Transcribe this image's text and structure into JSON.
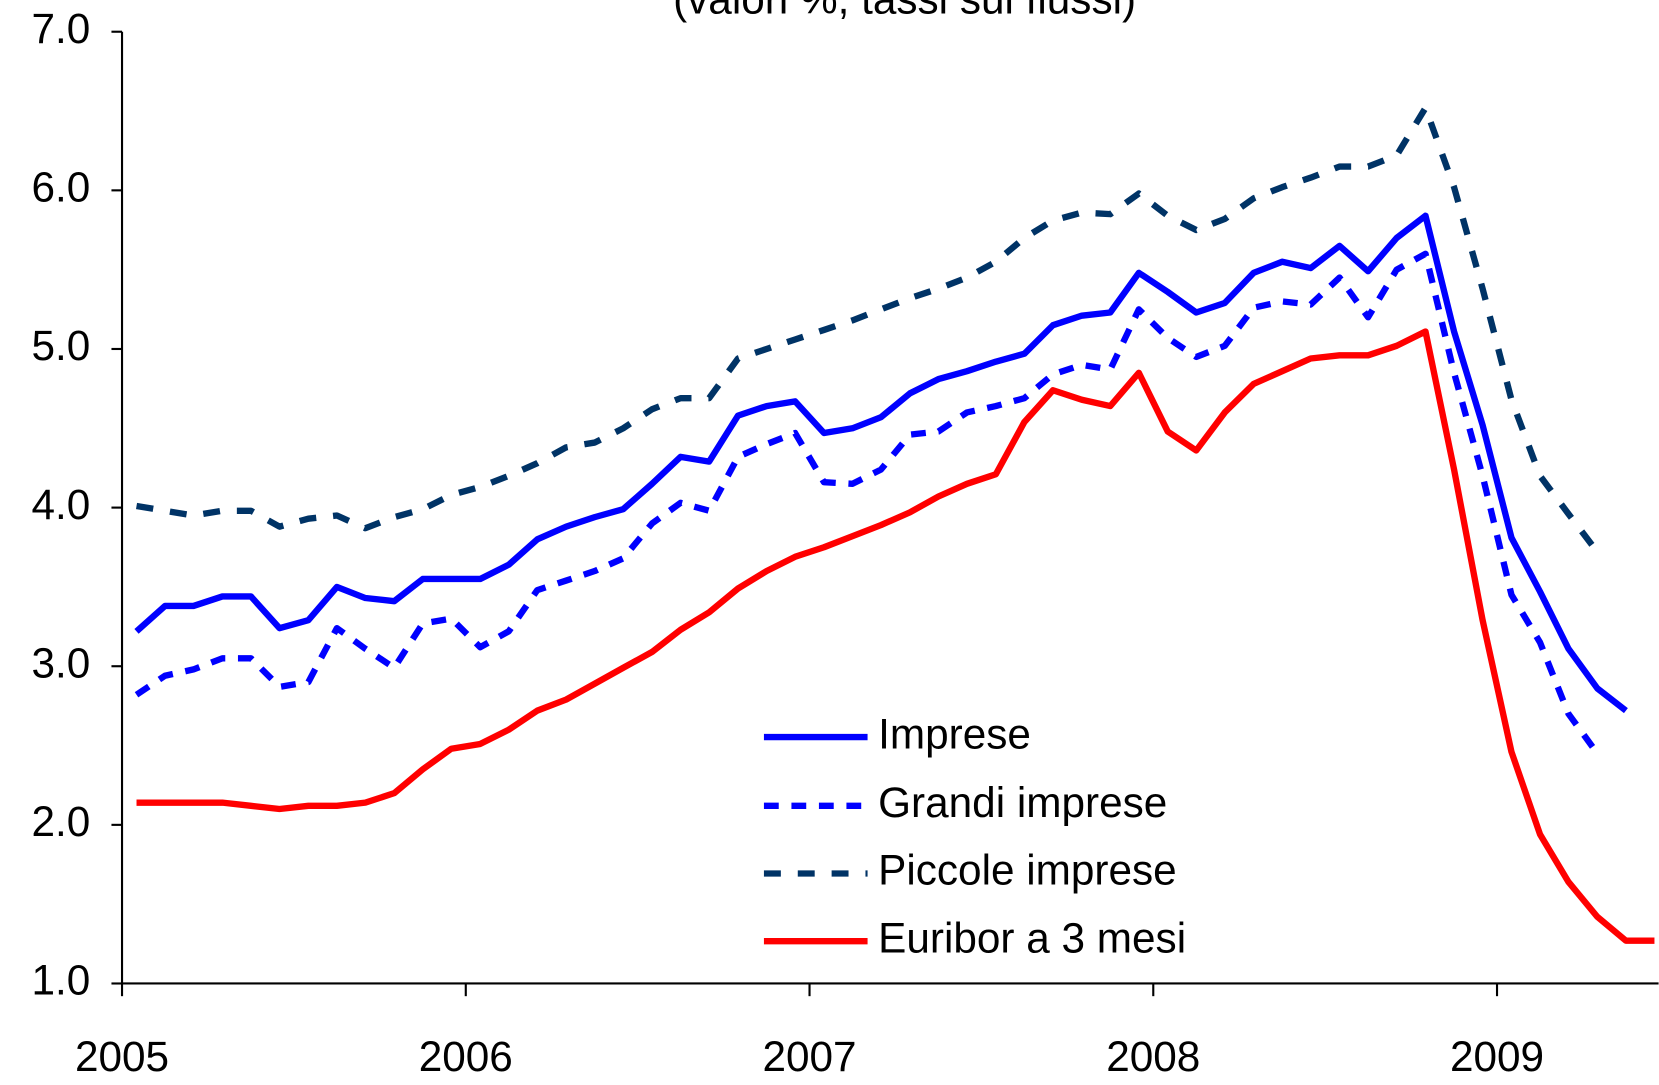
{
  "chart_data": {
    "type": "line",
    "title": "(valori %, tassi sui flussi)",
    "x": [
      2005.042,
      2005.125,
      2005.208,
      2005.292,
      2005.375,
      2005.458,
      2005.542,
      2005.625,
      2005.708,
      2005.792,
      2005.875,
      2005.958,
      2006.042,
      2006.125,
      2006.208,
      2006.292,
      2006.375,
      2006.458,
      2006.542,
      2006.625,
      2006.708,
      2006.792,
      2006.875,
      2006.958,
      2007.042,
      2007.125,
      2007.208,
      2007.292,
      2007.375,
      2007.458,
      2007.542,
      2007.625,
      2007.708,
      2007.792,
      2007.875,
      2007.958,
      2008.042,
      2008.125,
      2008.208,
      2008.292,
      2008.375,
      2008.458,
      2008.542,
      2008.625,
      2008.708,
      2008.792,
      2008.875,
      2008.958,
      2009.042,
      2009.125,
      2009.208,
      2009.292,
      2009.375,
      2009.458
    ],
    "series": [
      {
        "name": "Imprese",
        "color": "#0000ff",
        "style": "solid",
        "values": [
          3.22,
          3.38,
          3.38,
          3.44,
          3.44,
          3.24,
          3.29,
          3.5,
          3.43,
          3.41,
          3.55,
          3.55,
          3.55,
          3.64,
          3.8,
          3.88,
          3.94,
          3.99,
          4.15,
          4.32,
          4.29,
          4.58,
          4.64,
          4.67,
          4.47,
          4.5,
          4.57,
          4.72,
          4.81,
          4.86,
          4.92,
          4.97,
          5.15,
          5.21,
          5.23,
          5.48,
          5.36,
          5.23,
          5.29,
          5.48,
          5.55,
          5.51,
          5.65,
          5.49,
          5.7,
          5.84,
          5.11,
          4.52,
          3.81,
          3.47,
          3.11,
          2.86,
          2.72,
          null
        ]
      },
      {
        "name": "Grandi imprese",
        "color": "#0000ff",
        "style": "dotted",
        "values": [
          2.82,
          2.94,
          2.98,
          3.05,
          3.05,
          2.87,
          2.9,
          3.24,
          3.11,
          2.99,
          3.27,
          3.3,
          3.12,
          3.22,
          3.48,
          3.54,
          3.6,
          3.68,
          3.9,
          4.03,
          3.98,
          4.32,
          4.4,
          4.47,
          4.16,
          4.15,
          4.24,
          4.46,
          4.48,
          4.6,
          4.64,
          4.69,
          4.84,
          4.9,
          4.87,
          5.25,
          5.07,
          4.95,
          5.02,
          5.26,
          5.3,
          5.28,
          5.45,
          5.2,
          5.5,
          5.6,
          4.85,
          4.2,
          3.45,
          3.15,
          2.7,
          2.45,
          null,
          null
        ]
      },
      {
        "name": "Piccole imprese",
        "color": "#003366",
        "style": "dashed",
        "values": [
          4.01,
          3.98,
          3.95,
          3.98,
          3.98,
          3.88,
          3.93,
          3.95,
          3.87,
          3.94,
          3.99,
          4.08,
          4.13,
          4.2,
          4.28,
          4.38,
          4.41,
          4.5,
          4.62,
          4.69,
          4.69,
          4.94,
          5.0,
          5.06,
          5.12,
          5.18,
          5.25,
          5.32,
          5.38,
          5.45,
          5.55,
          5.7,
          5.81,
          5.86,
          5.85,
          5.98,
          5.84,
          5.75,
          5.82,
          5.95,
          6.02,
          6.08,
          6.15,
          6.15,
          6.22,
          6.52,
          6.02,
          5.38,
          4.68,
          4.2,
          3.96,
          3.72,
          null,
          null
        ]
      },
      {
        "name": "Euribor a 3 mesi",
        "color": "#ff0000",
        "style": "solid",
        "values": [
          2.14,
          2.14,
          2.14,
          2.14,
          2.12,
          2.1,
          2.12,
          2.12,
          2.14,
          2.2,
          2.35,
          2.48,
          2.51,
          2.6,
          2.72,
          2.79,
          2.89,
          2.99,
          3.09,
          3.23,
          3.34,
          3.49,
          3.6,
          3.69,
          3.75,
          3.82,
          3.89,
          3.97,
          4.07,
          4.15,
          4.21,
          4.54,
          4.74,
          4.68,
          4.64,
          4.85,
          4.48,
          4.36,
          4.6,
          4.78,
          4.86,
          4.94,
          4.96,
          4.96,
          5.02,
          5.11,
          4.24,
          3.29,
          2.46,
          1.94,
          1.64,
          1.42,
          1.27,
          1.27
        ]
      }
    ],
    "xlim": [
      2005,
      2009.47
    ],
    "xticks": [
      2005,
      2006,
      2007,
      2008,
      2009
    ],
    "ylim": [
      1,
      7
    ],
    "yticks": [
      {
        "value": 1,
        "label": "1.0"
      },
      {
        "value": 2,
        "label": "2.0"
      },
      {
        "value": 3,
        "label": "3.0"
      },
      {
        "value": 4,
        "label": "4.0"
      },
      {
        "value": 5,
        "label": "5.0"
      },
      {
        "value": 6,
        "label": "6.0"
      },
      {
        "value": 7,
        "label": "7.0"
      }
    ],
    "legend": "lower-center"
  }
}
